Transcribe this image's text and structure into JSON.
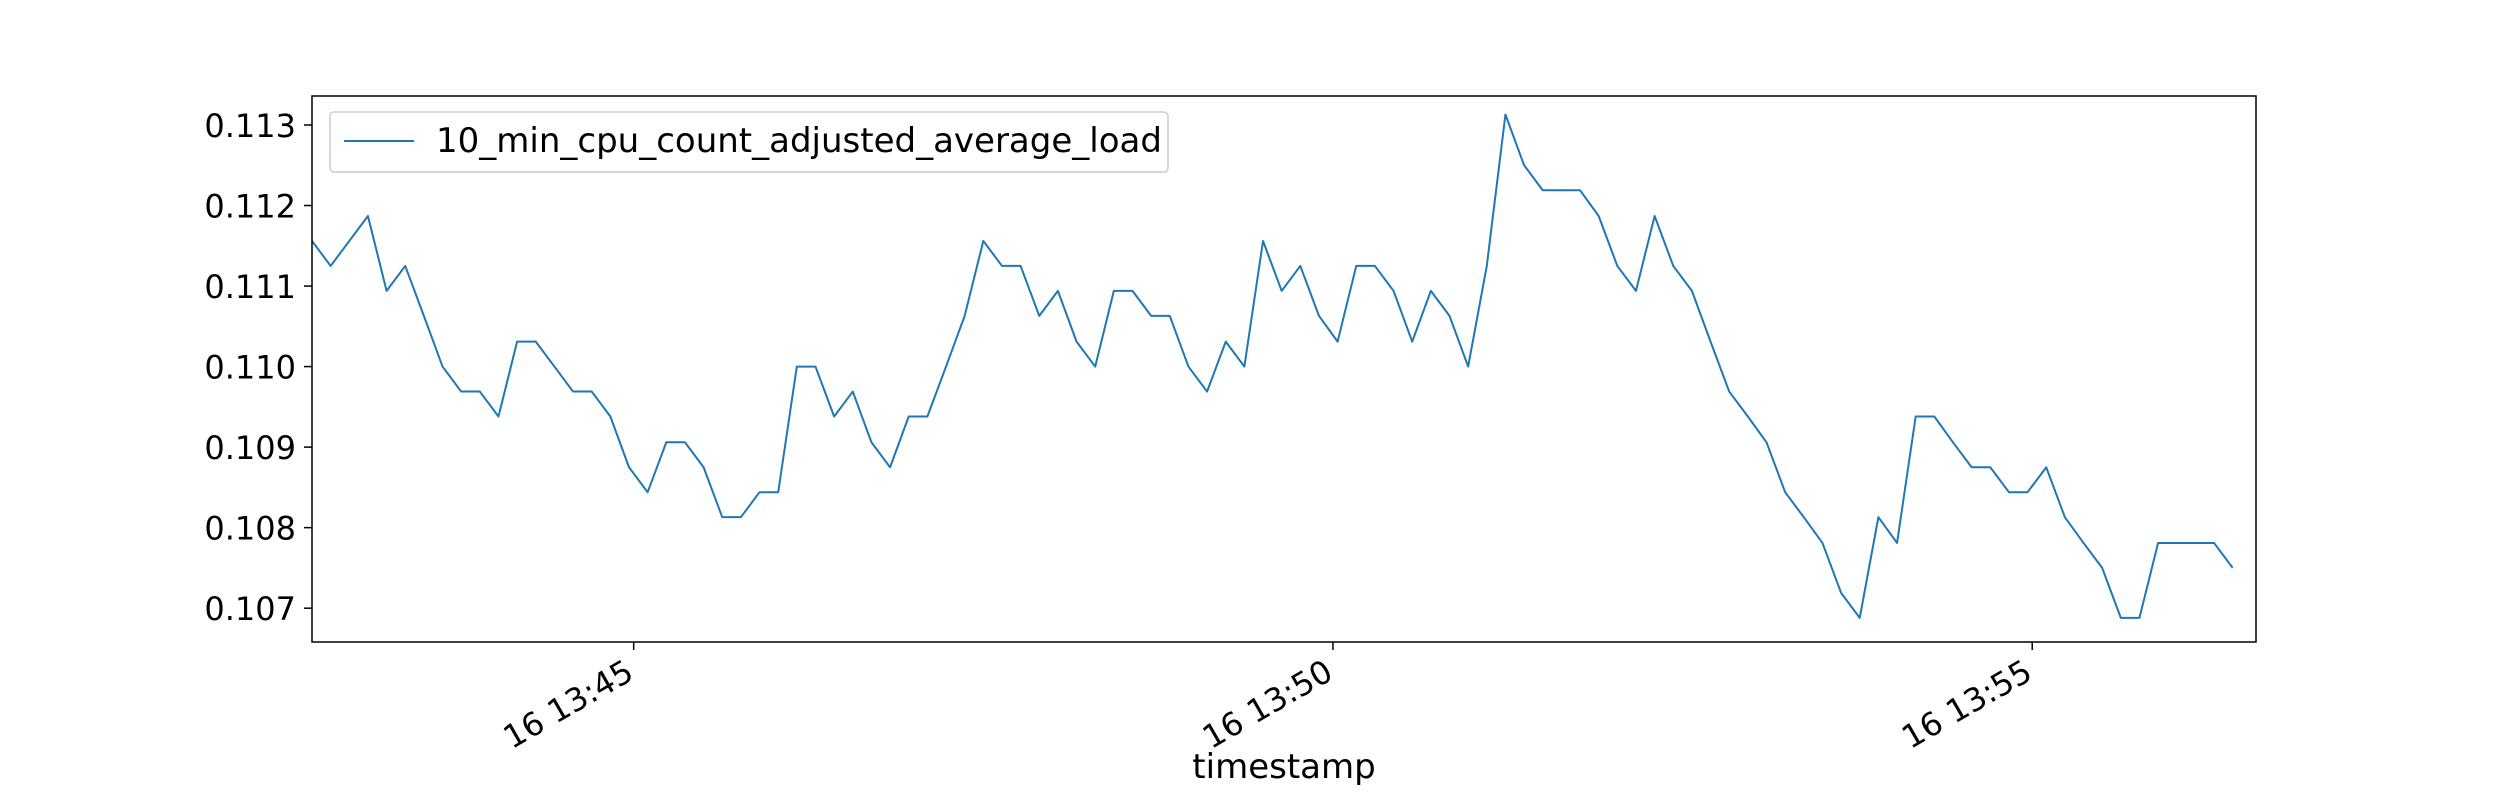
{
  "chart_data": {
    "type": "line",
    "xlabel": "timestamp",
    "ylabel": "",
    "x_start": "2024-01-16T13:42:42",
    "x_end": "2024-01-16T13:56:36",
    "xlim": [
      "2024-01-16T13:42:42",
      "2024-01-16T13:56:36"
    ],
    "ylim": [
      0.10658,
      0.11336
    ],
    "x_ticks": [
      {
        "value": "2024-01-16T13:45:00",
        "label": "16 13:45"
      },
      {
        "value": "2024-01-16T13:50:00",
        "label": "16 13:50"
      },
      {
        "value": "2024-01-16T13:55:00",
        "label": "16 13:55"
      }
    ],
    "y_ticks": [
      {
        "value": 0.107,
        "label": "0.107"
      },
      {
        "value": 0.108,
        "label": "0.108"
      },
      {
        "value": 0.109,
        "label": "0.109"
      },
      {
        "value": 0.11,
        "label": "0.110"
      },
      {
        "value": 0.111,
        "label": "0.111"
      },
      {
        "value": 0.112,
        "label": "0.112"
      },
      {
        "value": 0.113,
        "label": "0.113"
      }
    ],
    "grid": false,
    "legend": {
      "placement": "upper-left"
    },
    "series": [
      {
        "name": "10_min_cpu_count_adjusted_average_load",
        "color": "#1f77b4",
        "sample_interval_seconds": 8,
        "values": [
          0.11156,
          0.11125,
          0.11156,
          0.11187,
          0.11094,
          0.11125,
          0.11063,
          0.11,
          0.10969,
          0.10969,
          0.10938,
          0.11031,
          0.11031,
          0.11,
          0.10969,
          0.10969,
          0.10938,
          0.10875,
          0.10844,
          0.10906,
          0.10906,
          0.10875,
          0.10813,
          0.10813,
          0.10844,
          0.10844,
          0.11,
          0.11,
          0.10938,
          0.10969,
          0.10906,
          0.10875,
          0.10938,
          0.10938,
          0.11,
          0.11063,
          0.11156,
          0.11125,
          0.11125,
          0.11063,
          0.11094,
          0.11031,
          0.11,
          0.11094,
          0.11094,
          0.11063,
          0.11063,
          0.11,
          0.10969,
          0.11031,
          0.11,
          0.11156,
          0.11094,
          0.11125,
          0.11063,
          0.11031,
          0.11125,
          0.11125,
          0.11094,
          0.11031,
          0.11094,
          0.11063,
          0.11,
          0.11125,
          0.11313,
          0.1125,
          0.11219,
          0.11219,
          0.11219,
          0.11187,
          0.11125,
          0.11094,
          0.11187,
          0.11125,
          0.11094,
          0.11031,
          0.10969,
          0.10938,
          0.10906,
          0.10844,
          0.10813,
          0.10781,
          0.10719,
          0.10688,
          0.10813,
          0.10781,
          0.10938,
          0.10938,
          0.10906,
          0.10875,
          0.10875,
          0.10844,
          0.10844,
          0.10875,
          0.10813,
          0.10781,
          0.1075,
          0.10688,
          0.10688,
          0.10781,
          0.10781,
          0.10781,
          0.10781,
          0.1075
        ]
      }
    ]
  }
}
